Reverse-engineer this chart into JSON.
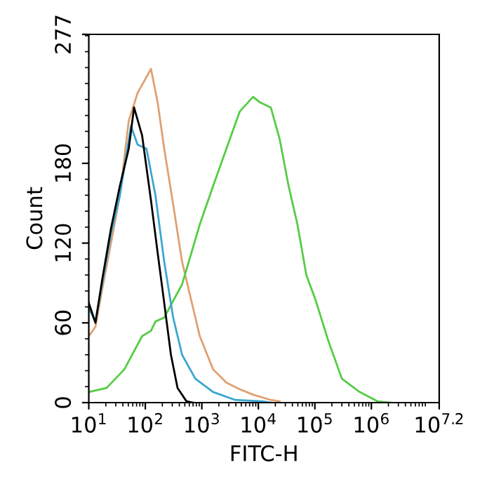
{
  "chart_data": {
    "type": "line",
    "xlabel": "FITC-H",
    "ylabel": "Count",
    "log": "x",
    "xlim": [
      10,
      15848932
    ],
    "ylim": [
      0,
      277
    ],
    "xticks": [
      {
        "value": 10,
        "label": "10$^{1}$"
      },
      {
        "value": 100,
        "label": "10$^{2}$"
      },
      {
        "value": 1000,
        "label": "10$^{3}$"
      },
      {
        "value": 10000,
        "label": "10$^{4}$"
      },
      {
        "value": 100000,
        "label": "10$^{5}$"
      },
      {
        "value": 1000000,
        "label": "10$^{6}$"
      },
      {
        "value": 15848932,
        "label": "10$^{7.2}$"
      }
    ],
    "yticks": [
      0,
      60,
      120,
      180,
      277
    ],
    "grid": false,
    "marker": "none",
    "line_style": "solid",
    "series": [
      {
        "color": "#e0a070",
        "x": [
          10,
          13.1,
          17.2,
          24.7,
          35.5,
          50.9,
          73.1,
          95.9,
          126,
          165,
          216,
          311,
          447,
          641,
          920,
          1585,
          2723,
          4688,
          8072,
          16600,
          23880
        ],
        "values": [
          50,
          57,
          85,
          120,
          156,
          212,
          233,
          242,
          251,
          226,
          191,
          149,
          106,
          78,
          50,
          25,
          15,
          10,
          6,
          2,
          1
        ]
      },
      {
        "color": "#55cc44",
        "x": [
          10,
          20.6,
          42.5,
          87.7,
          126,
          151,
          216,
          447,
          920,
          1585,
          2723,
          4688,
          8072,
          10570,
          16600,
          23880,
          34280,
          49200,
          70630,
          101400,
          174600,
          300600,
          619400,
          1276000,
          2198000
        ],
        "values": [
          8,
          11,
          25,
          50,
          54,
          61,
          64,
          89,
          134,
          163,
          191,
          219,
          230,
          226,
          222,
          198,
          163,
          134,
          96,
          78,
          46,
          18,
          8,
          1,
          0
        ]
      },
      {
        "color": "#3aa6d0",
        "x": [
          10,
          13.1,
          17.2,
          24.7,
          35.5,
          55.7,
          73.1,
          105,
          151,
          216,
          311,
          447,
          767,
          1585,
          3908,
          11590,
          16600
        ],
        "values": [
          71,
          61,
          89,
          127,
          156,
          208,
          194,
          191,
          156,
          106,
          64,
          36,
          18,
          8,
          2,
          1,
          0
        ]
      },
      {
        "color": "#000000",
        "x": [
          10,
          13.1,
          17.2,
          24.7,
          35.5,
          50.9,
          63.2,
          87.7,
          126,
          165,
          216,
          284,
          372,
          535,
          702
        ],
        "values": [
          75,
          60,
          92,
          131,
          163,
          191,
          222,
          201,
          152,
          113,
          75,
          36,
          11,
          1,
          0
        ]
      }
    ]
  }
}
